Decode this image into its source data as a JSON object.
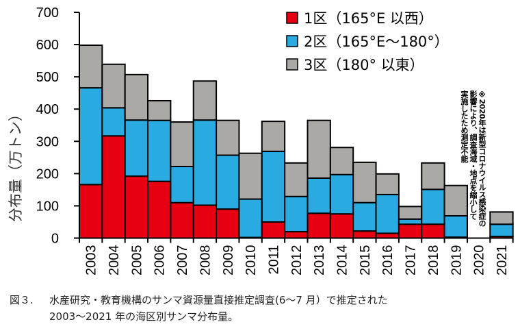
{
  "chart_data": {
    "type": "bar",
    "stacked": true,
    "title": "",
    "xlabel": "",
    "ylabel": "分布量（万トン）",
    "ylim": [
      0,
      700
    ],
    "yticks": [
      0,
      100,
      200,
      300,
      400,
      500,
      600,
      700
    ],
    "grid": false,
    "legend_position": "top-right",
    "categories": [
      "2003",
      "2004",
      "2005",
      "2006",
      "2007",
      "2008",
      "2009",
      "2010",
      "2011",
      "2012",
      "2013",
      "2014",
      "2015",
      "2016",
      "2017",
      "2018",
      "2019",
      "2020",
      "2021"
    ],
    "series": [
      {
        "name": "1区（165°E 以西）",
        "color": "#e60012",
        "values": [
          166,
          317,
          192,
          176,
          110,
          102,
          90,
          2,
          50,
          20,
          77,
          75,
          22,
          15,
          43,
          43,
          3,
          0,
          5
        ]
      },
      {
        "name": "2区（165°E〜180°）",
        "color": "#29abe2",
        "values": [
          300,
          87,
          174,
          189,
          112,
          264,
          167,
          119,
          219,
          109,
          109,
          122,
          88,
          120,
          16,
          108,
          66,
          0,
          38
        ]
      },
      {
        "name": "3区（180° 以東）",
        "color": "#aba9a6",
        "values": [
          132,
          135,
          141,
          61,
          138,
          121,
          108,
          142,
          93,
          104,
          179,
          84,
          125,
          64,
          39,
          82,
          94,
          0,
          38
        ]
      }
    ],
    "totals": [
      598,
      539,
      507,
      426,
      360,
      487,
      365,
      263,
      362,
      233,
      365,
      281,
      235,
      199,
      98,
      233,
      163,
      0,
      81
    ],
    "annotation": {
      "lines": [
        "※2020年は新型コロナウイルス感染症の",
        "影響により、調査海域・地点を縮小して",
        "実施したため測定不能"
      ]
    }
  },
  "caption": {
    "figure_label": "図３.",
    "line1": "水産研究・教育機構のサンマ資源量直接推定調査(6〜7 月）で推定された",
    "line2": "2003〜2021 年の海区別サンマ分布量。"
  }
}
